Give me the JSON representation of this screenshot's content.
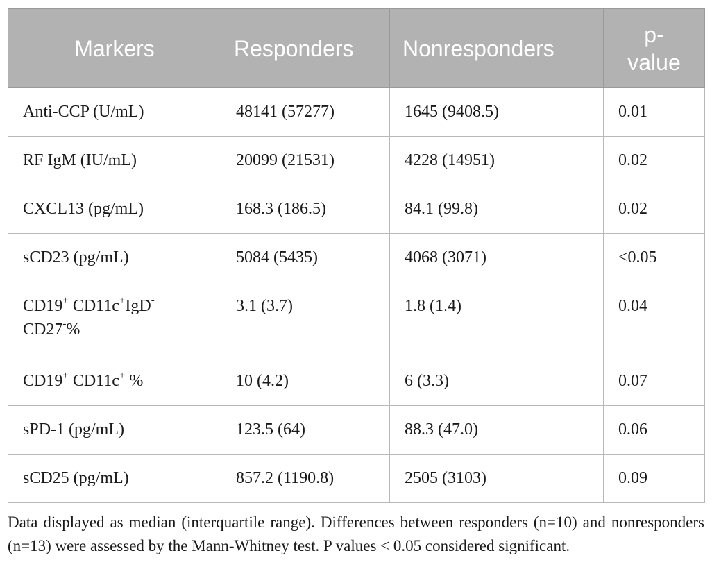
{
  "table": {
    "headers": [
      "Markers",
      "Responders",
      "Nonresponders",
      "p-value"
    ],
    "header_pvalue_line1": "p-",
    "header_pvalue_line2": "value",
    "rows": [
      {
        "marker": "Anti-CCP (U/mL)",
        "responders": "48141 (57277)",
        "nonresponders": "1645 (9408.5)",
        "p": "0.01"
      },
      {
        "marker": "RF IgM (IU/mL)",
        "responders": "20099 (21531)",
        "nonresponders": "4228 (14951)",
        "p": "0.02"
      },
      {
        "marker": "CXCL13 (pg/mL)",
        "responders": "168.3 (186.5)",
        "nonresponders": "84.1 (99.8)",
        "p": "0.02"
      },
      {
        "marker": "sCD23 (pg/mL)",
        "responders": "5084 (5435)",
        "nonresponders": "4068 (3071)",
        "p": "<0.05"
      },
      {
        "marker_parts": {
          "a": "CD19",
          "a_sup": "+",
          "b": " CD11c",
          "b_sup": "+",
          "c": "IgD",
          "c_sup": "-",
          "d": "CD27",
          "d_sup": "-",
          "e": "%"
        },
        "responders": "3.1 (3.7)",
        "nonresponders": "1.8 (1.4)",
        "p": "0.04"
      },
      {
        "marker_parts": {
          "a": "CD19",
          "a_sup": "+",
          "b": " CD11c",
          "b_sup": "+",
          "c": " %"
        },
        "responders": "10 (4.2)",
        "nonresponders": "6 (3.3)",
        "p": "0.07"
      },
      {
        "marker": "sPD-1 (pg/mL)",
        "responders": "123.5 (64)",
        "nonresponders": "88.3 (47.0)",
        "p": "0.06"
      },
      {
        "marker": "sCD25 (pg/mL)",
        "responders": "857.2 (1190.8)",
        "nonresponders": "2505 (3103)",
        "p": "0.09"
      }
    ]
  },
  "footnote": "Data displayed as median (interquartile range). Differences between responders (n=10) and nonresponders (n=13) were assessed by the Mann-Whitney test. P values < 0.05 considered significant."
}
